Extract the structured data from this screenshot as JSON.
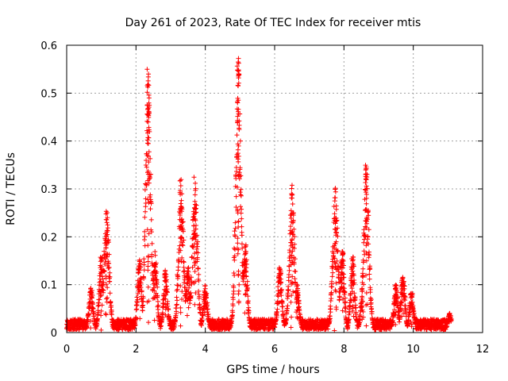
{
  "chart_data": {
    "type": "scatter",
    "title": "Day 261 of 2023, Rate Of TEC Index for receiver mtis",
    "xlabel": "GPS time / hours",
    "ylabel": "ROTI / TECUs",
    "xlim": [
      0,
      12
    ],
    "ylim": [
      0,
      0.6
    ],
    "xticks": [
      0,
      2,
      4,
      6,
      8,
      10,
      12
    ],
    "xtick_labels": [
      "0",
      "2",
      "4",
      "6",
      "8",
      "10",
      "12"
    ],
    "yticks": [
      0,
      0.1,
      0.2,
      0.3,
      0.4,
      0.5,
      0.6
    ],
    "ytick_labels": [
      "0",
      "0.1",
      "0.2",
      "0.3",
      "0.4",
      "0.5",
      "0.6"
    ],
    "grid": true,
    "marker": "+",
    "color": "#ff0000",
    "series": [
      {
        "name": "ROTI",
        "x_range_hours": [
          0,
          11.1
        ],
        "baseline_level": 0.02,
        "peaks": [
          {
            "x": 0.7,
            "y": 0.095
          },
          {
            "x": 1.0,
            "y": 0.16
          },
          {
            "x": 1.15,
            "y": 0.26
          },
          {
            "x": 2.1,
            "y": 0.155
          },
          {
            "x": 2.35,
            "y": 0.55
          },
          {
            "x": 2.55,
            "y": 0.175
          },
          {
            "x": 2.85,
            "y": 0.13
          },
          {
            "x": 3.3,
            "y": 0.32
          },
          {
            "x": 3.5,
            "y": 0.14
          },
          {
            "x": 3.7,
            "y": 0.33
          },
          {
            "x": 4.0,
            "y": 0.1
          },
          {
            "x": 4.95,
            "y": 0.575
          },
          {
            "x": 5.15,
            "y": 0.19
          },
          {
            "x": 6.15,
            "y": 0.14
          },
          {
            "x": 6.5,
            "y": 0.31
          },
          {
            "x": 6.65,
            "y": 0.1
          },
          {
            "x": 7.75,
            "y": 0.305
          },
          {
            "x": 7.95,
            "y": 0.18
          },
          {
            "x": 8.25,
            "y": 0.16
          },
          {
            "x": 8.65,
            "y": 0.35
          },
          {
            "x": 8.55,
            "y": 0.11
          },
          {
            "x": 9.5,
            "y": 0.1
          },
          {
            "x": 9.7,
            "y": 0.13
          },
          {
            "x": 9.95,
            "y": 0.09
          },
          {
            "x": 11.05,
            "y": 0.04
          }
        ]
      }
    ]
  }
}
